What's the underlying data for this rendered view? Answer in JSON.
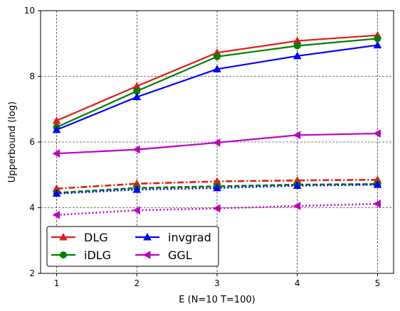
{
  "chart_data": {
    "type": "line",
    "title": "",
    "xlabel": "E (N=10 T=100)",
    "ylabel": "Upperbound (log)",
    "x": [
      1,
      2,
      3,
      4,
      5
    ],
    "xticks": [
      "1",
      "2",
      "3",
      "4",
      "5"
    ],
    "yticks": [
      "2",
      "4",
      "6",
      "8",
      "10"
    ],
    "xlim": [
      0.8,
      5.2
    ],
    "ylim": [
      2,
      10
    ],
    "grid": true,
    "legend_position": "lower-left",
    "series": [
      {
        "name": "DLG",
        "color": "#e41a1c",
        "marker": "triangle-up",
        "linestyle": "solid",
        "values": [
          6.65,
          7.7,
          8.72,
          9.08,
          9.25
        ]
      },
      {
        "name": "iDLG",
        "color": "#008000",
        "marker": "circle",
        "linestyle": "solid",
        "values": [
          6.45,
          7.55,
          8.6,
          8.93,
          9.15
        ]
      },
      {
        "name": "invgrad",
        "color": "#0000ff",
        "marker": "triangle-up",
        "linestyle": "solid",
        "values": [
          6.37,
          7.37,
          8.22,
          8.62,
          8.95
        ]
      },
      {
        "name": "GGL",
        "color": "#bf00bf",
        "marker": "triangle-left",
        "linestyle": "solid",
        "values": [
          5.65,
          5.77,
          5.98,
          6.21,
          6.26
        ]
      },
      {
        "name": "",
        "color": "#e41a1c",
        "marker": "triangle-up",
        "linestyle": "dashdot",
        "values": [
          4.58,
          4.73,
          4.8,
          4.83,
          4.85
        ]
      },
      {
        "name": "",
        "color": "#008000",
        "marker": "circle",
        "linestyle": "dashed",
        "values": [
          4.45,
          4.6,
          4.65,
          4.7,
          4.72
        ]
      },
      {
        "name": "",
        "color": "#0000ff",
        "marker": "triangle-up",
        "linestyle": "dotted",
        "values": [
          4.43,
          4.55,
          4.6,
          4.67,
          4.7
        ]
      },
      {
        "name": "",
        "color": "#bf00bf",
        "marker": "triangle-left",
        "linestyle": "dotted",
        "values": [
          3.78,
          3.92,
          3.98,
          4.05,
          4.12
        ]
      }
    ],
    "legend": [
      {
        "label": "DLG",
        "series_index": 0
      },
      {
        "label": "iDLG",
        "series_index": 1
      },
      {
        "label": "invgrad",
        "series_index": 2
      },
      {
        "label": "GGL",
        "series_index": 3
      }
    ]
  }
}
